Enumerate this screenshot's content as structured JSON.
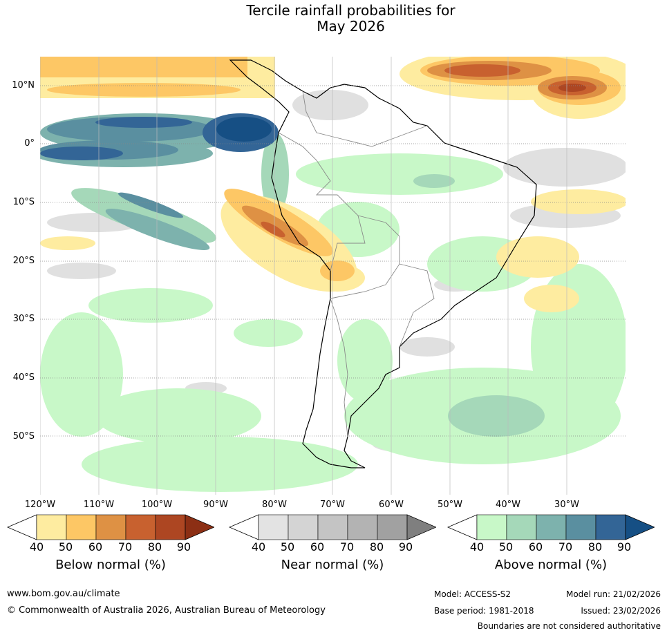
{
  "title": {
    "line1": "Tercile rainfall probabilities for",
    "line2": "May 2026"
  },
  "map": {
    "region": "South America",
    "lat_labels": [
      "10°N",
      "0°",
      "10°S",
      "20°S",
      "30°S",
      "40°S",
      "50°S"
    ],
    "lon_labels": [
      "120°W",
      "110°W",
      "100°W",
      "90°W",
      "80°W",
      "70°W",
      "60°W",
      "50°W",
      "40°W",
      "30°W"
    ]
  },
  "legend": {
    "below": {
      "label": "Below normal (%)",
      "ticks": [
        "40",
        "50",
        "60",
        "70",
        "80",
        "90"
      ],
      "colors": [
        "#ffffff",
        "#feeca0",
        "#fdc765",
        "#de9144",
        "#c8612f",
        "#ad4622",
        "#8c2f14"
      ]
    },
    "near": {
      "label": "Near normal (%)",
      "ticks": [
        "40",
        "50",
        "60",
        "70",
        "80",
        "90"
      ],
      "colors": [
        "#ffffff",
        "#e3e3e3",
        "#d4d4d4",
        "#c4c4c4",
        "#b3b3b3",
        "#a1a1a1",
        "#7f7f7f"
      ]
    },
    "above": {
      "label": "Above normal (%)",
      "ticks": [
        "40",
        "50",
        "60",
        "70",
        "80",
        "90"
      ],
      "colors": [
        "#ffffff",
        "#c8f8c8",
        "#a5d8b9",
        "#7db2ad",
        "#5a8fa0",
        "#336596",
        "#164f84"
      ]
    }
  },
  "footer": {
    "url": "www.bom.gov.au/climate",
    "copyright": "© Commonwealth of Australia 2026, Australian Bureau of Meteorology",
    "model": "Model: ACCESS-S2",
    "base_period": "Base period: 1981-2018",
    "model_run": "Model run: 21/02/2026",
    "issued": "Issued: 23/02/2026",
    "disclaimer": "Boundaries are not considered authoritative"
  }
}
